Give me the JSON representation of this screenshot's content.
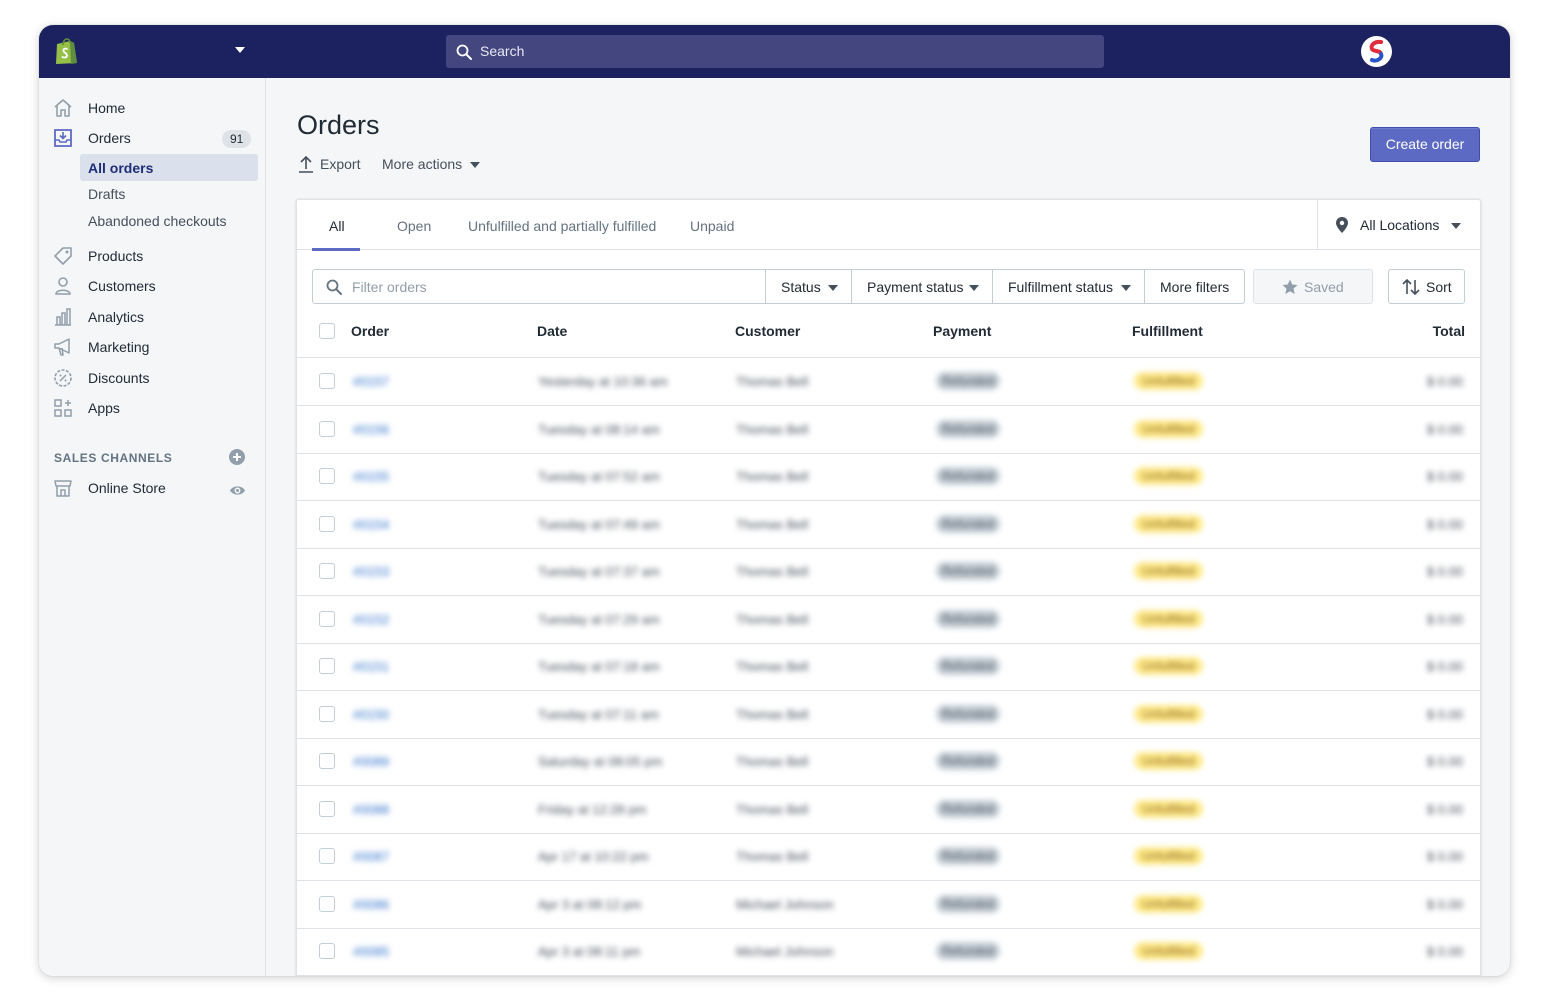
{
  "topbar": {
    "search_placeholder": "Search"
  },
  "sidebar": {
    "home": "Home",
    "orders": "Orders",
    "orders_count": "91",
    "orders_sub": [
      "All orders",
      "Drafts",
      "Abandoned checkouts"
    ],
    "products": "Products",
    "customers": "Customers",
    "analytics": "Analytics",
    "marketing": "Marketing",
    "discounts": "Discounts",
    "apps": "Apps",
    "sales_channels_title": "SALES CHANNELS",
    "online_store": "Online Store"
  },
  "page": {
    "title": "Orders",
    "export_label": "Export",
    "more_actions_label": "More actions",
    "create_order_label": "Create order"
  },
  "tabs": [
    "All",
    "Open",
    "Unfulfilled and partially fulfilled",
    "Unpaid"
  ],
  "location_selector": "All Locations",
  "filters": {
    "placeholder": "Filter orders",
    "status": "Status",
    "payment_status": "Payment status",
    "fulfillment_status": "Fulfillment status",
    "more_filters": "More filters",
    "saved": "Saved",
    "sort": "Sort"
  },
  "table": {
    "headers": {
      "order": "Order",
      "date": "Date",
      "customer": "Customer",
      "payment": "Payment",
      "fulfillment": "Fulfillment",
      "total": "Total"
    },
    "rows": [
      {
        "order": "#0157",
        "date": "Yesterday at 10:36 am",
        "customer": "Thomas Bell",
        "payment": "Refunded",
        "fulfillment": "Unfulfilled",
        "total": "$ 0.00"
      },
      {
        "order": "#0156",
        "date": "Tuesday at 08:14 am",
        "customer": "Thomas Bell",
        "payment": "Refunded",
        "fulfillment": "Unfulfilled",
        "total": "$ 0.00"
      },
      {
        "order": "#0155",
        "date": "Tuesday at 07:52 am",
        "customer": "Thomas Bell",
        "payment": "Refunded",
        "fulfillment": "Unfulfilled",
        "total": "$ 0.00"
      },
      {
        "order": "#0154",
        "date": "Tuesday at 07:49 am",
        "customer": "Thomas Bell",
        "payment": "Refunded",
        "fulfillment": "Unfulfilled",
        "total": "$ 0.00"
      },
      {
        "order": "#0153",
        "date": "Tuesday at 07:37 am",
        "customer": "Thomas Bell",
        "payment": "Refunded",
        "fulfillment": "Unfulfilled",
        "total": "$ 0.00"
      },
      {
        "order": "#0152",
        "date": "Tuesday at 07:29 am",
        "customer": "Thomas Bell",
        "payment": "Refunded",
        "fulfillment": "Unfulfilled",
        "total": "$ 0.00"
      },
      {
        "order": "#0151",
        "date": "Tuesday at 07:18 am",
        "customer": "Thomas Bell",
        "payment": "Refunded",
        "fulfillment": "Unfulfilled",
        "total": "$ 0.00"
      },
      {
        "order": "#0150",
        "date": "Tuesday at 07:11 am",
        "customer": "Thomas Bell",
        "payment": "Refunded",
        "fulfillment": "Unfulfilled",
        "total": "$ 0.00"
      },
      {
        "order": "#0089",
        "date": "Saturday at 08:05 pm",
        "customer": "Thomas Bell",
        "payment": "Refunded",
        "fulfillment": "Unfulfilled",
        "total": "$ 0.00"
      },
      {
        "order": "#0088",
        "date": "Friday at 12:28 pm",
        "customer": "Thomas Bell",
        "payment": "Refunded",
        "fulfillment": "Unfulfilled",
        "total": "$ 0.00"
      },
      {
        "order": "#0087",
        "date": "Apr 17 at 10:22 pm",
        "customer": "Thomas Bell",
        "payment": "Refunded",
        "fulfillment": "Unfulfilled",
        "total": "$ 0.00"
      },
      {
        "order": "#0086",
        "date": "Apr 3 at 08:12 pm",
        "customer": "Michael Johnson",
        "payment": "Refunded",
        "fulfillment": "Unfulfilled",
        "total": "$ 0.00"
      },
      {
        "order": "#0085",
        "date": "Apr 3 at 08:11 pm",
        "customer": "Michael Johnson",
        "payment": "Refunded",
        "fulfillment": "Unfulfilled",
        "total": "$ 0.00"
      }
    ]
  },
  "colors": {
    "topbar": "#1c2260",
    "accent": "#5c6ac4",
    "link": "#2c6ecb",
    "fulfillment_badge": "#ffea8a"
  }
}
